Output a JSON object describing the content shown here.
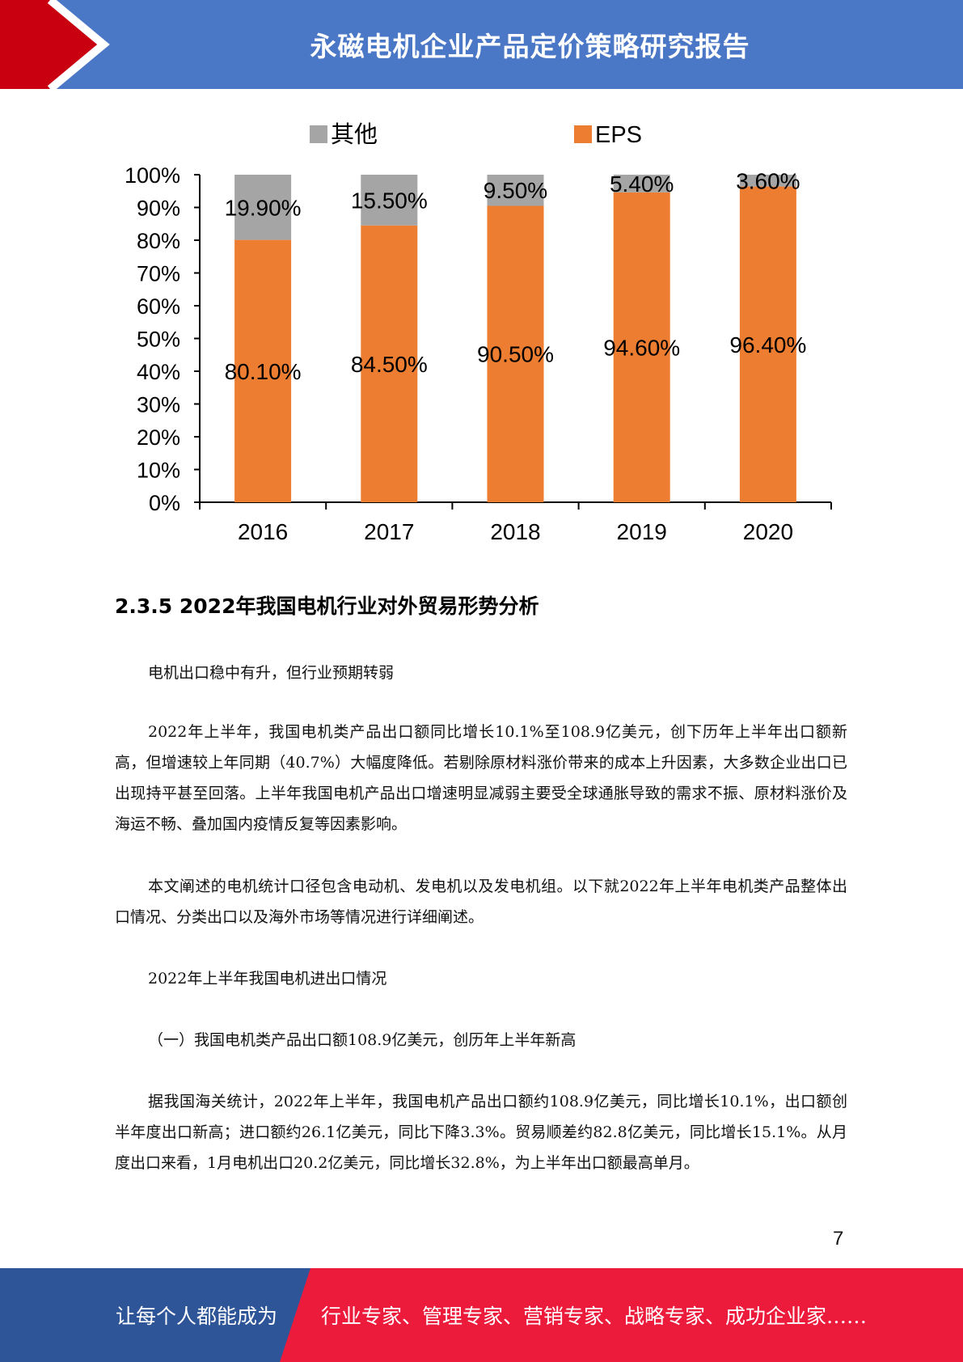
{
  "header": {
    "title": "永磁电机企业产品定价策略研究报告",
    "colors": {
      "bar": "#4a77c6",
      "accent": "#c8000f"
    }
  },
  "chart_data": {
    "type": "bar",
    "stacked": true,
    "percent": true,
    "categories": [
      "2016",
      "2017",
      "2018",
      "2019",
      "2020"
    ],
    "series": [
      {
        "name": "EPS",
        "color": "#ed7d31",
        "values": [
          80.1,
          84.5,
          90.5,
          94.6,
          96.4
        ],
        "labels": [
          "80.10%",
          "84.50%",
          "90.50%",
          "94.60%",
          "96.40%"
        ]
      },
      {
        "name": "其他",
        "color": "#a5a5a5",
        "values": [
          19.9,
          15.5,
          9.5,
          5.4,
          3.6
        ],
        "labels": [
          "19.90%",
          "15.50%",
          "9.50%",
          "5.40%",
          "3.60%"
        ]
      }
    ],
    "legend_order": [
      "其他",
      "EPS"
    ],
    "legend_position": "top",
    "ylim": [
      0,
      100
    ],
    "yticks": [
      "0%",
      "10%",
      "20%",
      "30%",
      "40%",
      "50%",
      "60%",
      "70%",
      "80%",
      "90%",
      "100%"
    ],
    "grid": false
  },
  "section": {
    "heading": "2.3.5 2022年我国电机行业对外贸易形势分析"
  },
  "paragraphs": [
    "电机出口稳中有升，但行业预期转弱",
    "2022年上半年，我国电机类产品出口额同比增长10.1%至108.9亿美元，创下历年上半年出口额新高，但增速较上年同期（40.7%）大幅度降低。若剔除原材料涨价带来的成本上升因素，大多数企业出口已出现持平甚至回落。上半年我国电机产品出口增速明显减弱主要受全球通胀导致的需求不振、原材料涨价及海运不畅、叠加国内疫情反复等因素影响。",
    "本文阐述的电机统计口径包含电动机、发电机以及发电机组。以下就2022年上半年电机类产品整体出口情况、分类出口以及海外市场等情况进行详细阐述。",
    "2022年上半年我国电机进出口情况",
    "（一）我国电机类产品出口额108.9亿美元，创历年上半年新高",
    "据我国海关统计，2022年上半年，我国电机产品出口额约108.9亿美元，同比增长10.1%，出口额创半年度出口新高；进口额约26.1亿美元，同比下降3.3%。贸易顺差约82.8亿美元，同比增长15.1%。从月度出口来看，1月电机出口20.2亿美元，同比增长32.8%，为上半年出口额最高单月。"
  ],
  "page_number": "7",
  "footer": {
    "left_text": "让每个人都能成为",
    "right_text": "行业专家、管理专家、营销专家、战略专家、成功企业家……",
    "colors": {
      "left": "#2e5597",
      "right": "#ec1b3b"
    }
  }
}
